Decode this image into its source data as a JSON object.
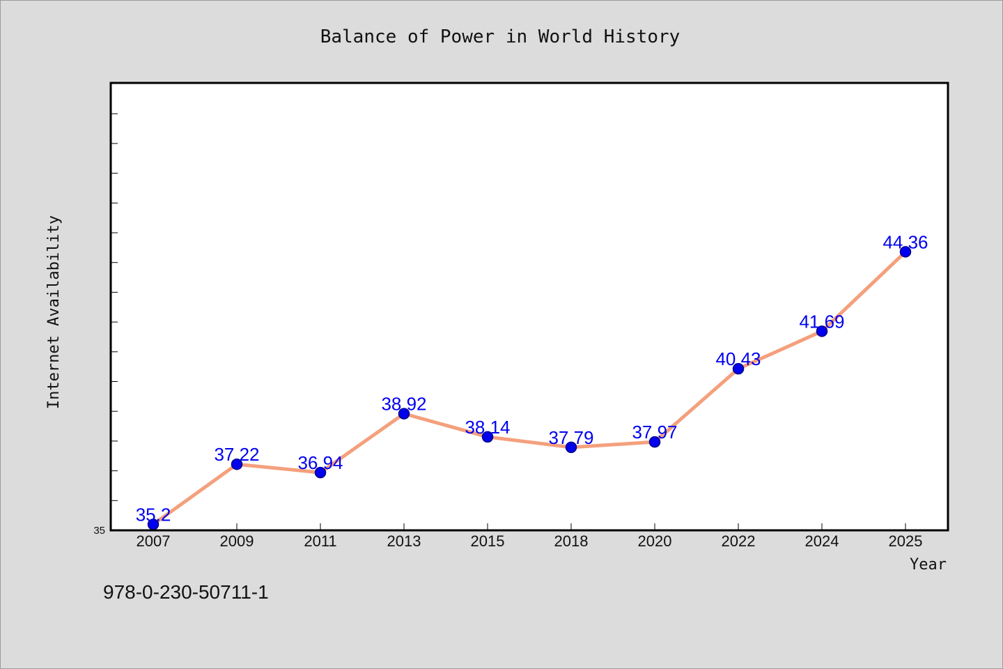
{
  "chart_data": {
    "type": "line",
    "title": "Balance of Power in World History",
    "xlabel": "Year",
    "ylabel": "Internet Availability",
    "categories": [
      "2007",
      "2009",
      "2011",
      "2013",
      "2015",
      "2018",
      "2020",
      "2022",
      "2024",
      "2025"
    ],
    "series": [
      {
        "values": [
          35.2,
          37.22,
          36.94,
          38.92,
          38.14,
          37.79,
          37.97,
          40.43,
          41.69,
          44.36
        ]
      }
    ],
    "data_labels": [
      "35.2",
      "37.22",
      "36.94",
      "38.92",
      "38.14",
      "37.79",
      "37.97",
      "40.43",
      "41.69",
      "44.36"
    ],
    "ylim": [
      35,
      50
    ],
    "y_tick_step": 1,
    "y_tick_labels": [
      "35"
    ],
    "grid": false,
    "legend": "none",
    "colors": {
      "line": "#f4a07c",
      "marker": "#0000ee",
      "marker_edge": "#000080",
      "data_label": "#0000ee",
      "plot_background": "#ffffff",
      "page_background": "#dcdcdc"
    }
  },
  "footer_text": "978-0-230-50711-1"
}
